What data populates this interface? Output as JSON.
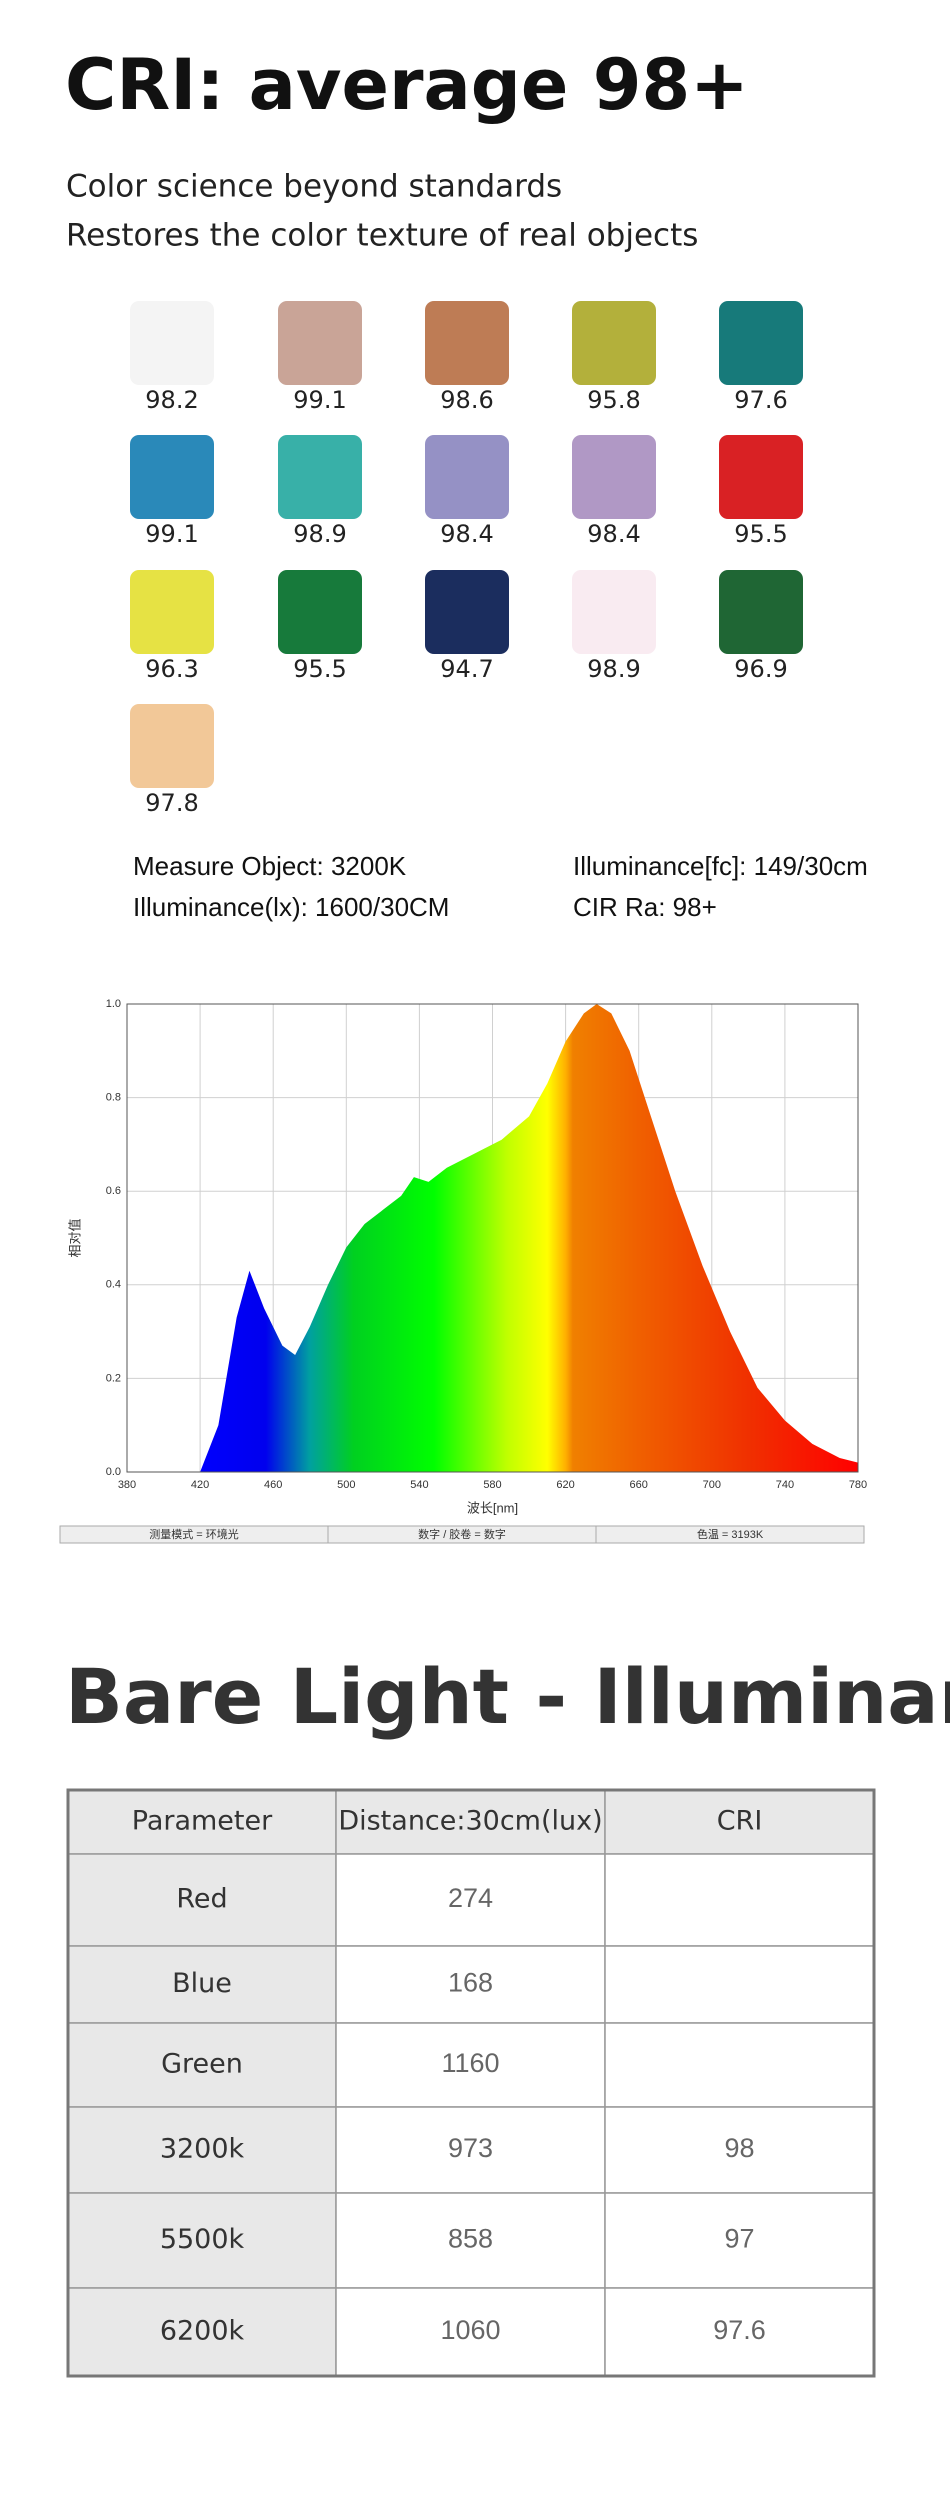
{
  "header": {
    "title": "CRI: average 98+",
    "lines": [
      "Color science beyond standards",
      "Restores the color texture of real objects"
    ]
  },
  "swatches": [
    {
      "color": "#f4f4f4",
      "value": 98.2
    },
    {
      "color": "#c9a497",
      "value": 99.1
    },
    {
      "color": "#be7c55",
      "value": 98.6
    },
    {
      "color": "#b3b03b",
      "value": 95.8
    },
    {
      "color": "#177a7a",
      "value": 97.6
    },
    {
      "color": "#2a89b9",
      "value": 99.1
    },
    {
      "color": "#38b0a8",
      "value": 98.9
    },
    {
      "color": "#9591c5",
      "value": 98.4
    },
    {
      "color": "#b098c5",
      "value": 98.4
    },
    {
      "color": "#d92124",
      "value": 95.5
    },
    {
      "color": "#e6e244",
      "value": 96.3
    },
    {
      "color": "#177a3b",
      "value": 95.5
    },
    {
      "color": "#1b2d5e",
      "value": 94.7
    },
    {
      "color": "#f9ebf1",
      "value": 98.9
    },
    {
      "color": "#1f6634",
      "value": 96.9
    },
    {
      "color": "#f2c898",
      "value": 97.8
    }
  ],
  "measurements": [
    "Measure Object: 3200K",
    "Illuminance[fc]: 149/30cm",
    "Illuminance(lx): 1600/30CM",
    "CIR Ra: 98+"
  ],
  "chart_data": {
    "type": "area",
    "xlabel": "波长[nm]",
    "ylabel": "相对值",
    "x": [
      420,
      430,
      440,
      447,
      455,
      465,
      472,
      480,
      490,
      500,
      510,
      520,
      530,
      537,
      545,
      555,
      570,
      585,
      600,
      610,
      620,
      630,
      637,
      645,
      655,
      665,
      680,
      695,
      710,
      725,
      740,
      755,
      770,
      780
    ],
    "values": [
      0,
      0.1,
      0.33,
      0.43,
      0.35,
      0.27,
      0.25,
      0.31,
      0.4,
      0.48,
      0.53,
      0.56,
      0.59,
      0.63,
      0.62,
      0.65,
      0.68,
      0.71,
      0.76,
      0.83,
      0.92,
      0.98,
      1.0,
      0.98,
      0.9,
      0.78,
      0.6,
      0.44,
      0.3,
      0.18,
      0.11,
      0.06,
      0.03,
      0.02
    ],
    "xlim": [
      380,
      780
    ],
    "xticks": [
      380,
      420,
      460,
      500,
      540,
      580,
      620,
      660,
      700,
      740,
      780
    ],
    "ylim": [
      0,
      1
    ],
    "yticks": [
      {
        "value": 0,
        "label": "0.0"
      },
      0.2,
      0.4,
      0.6,
      0.8,
      {
        "value": 1,
        "label": "1.0"
      }
    ],
    "grid": true,
    "footer": [
      "测量模式 = 环境光",
      "数字 / 胶卷 = 数字",
      "色温 = 3193K"
    ]
  },
  "section_title": "Bare Light - Illuminance",
  "table": {
    "header": [
      "Parameter",
      "Distance:30cm(lux)",
      "CRI"
    ],
    "rows": [
      [
        "Red",
        "274"
      ],
      [
        "Blue",
        "168"
      ],
      [
        "Green",
        "1160"
      ],
      [
        "3200k",
        "973",
        "98"
      ],
      [
        "5500k",
        "858",
        "97"
      ],
      [
        "6200k",
        "1060",
        "97.6"
      ]
    ]
  }
}
